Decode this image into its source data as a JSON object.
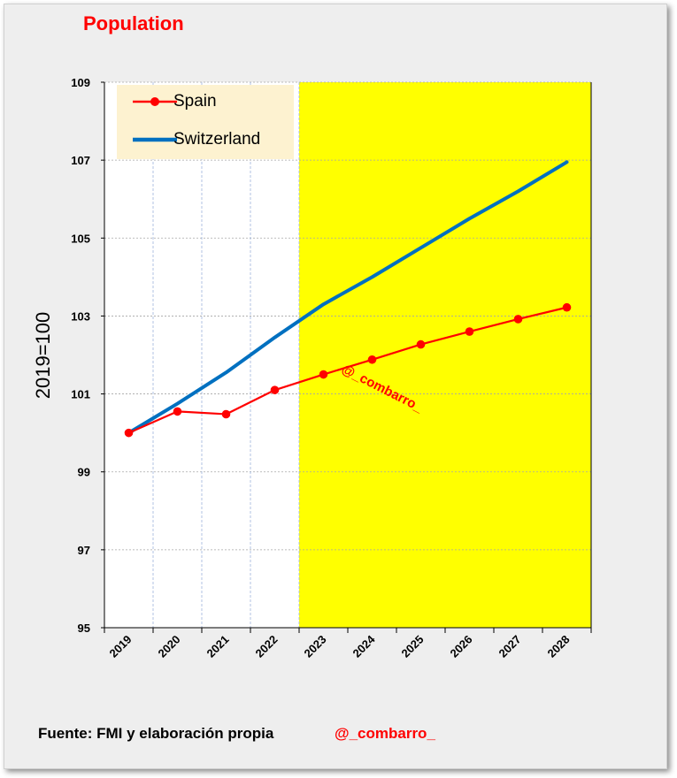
{
  "title": "Population",
  "footer": {
    "source": "Fuente: FMI y elaboración propia",
    "handle": "@_combarro_"
  },
  "watermark": "@_combarro_",
  "chart_data": {
    "type": "line",
    "title": "Population",
    "ylabel": "2019=100",
    "xlabel": "",
    "ylim": [
      95,
      109
    ],
    "yticks": [
      95,
      97,
      99,
      101,
      103,
      105,
      107,
      109
    ],
    "categories": [
      "2019",
      "2020",
      "2021",
      "2022",
      "2023",
      "2024",
      "2025",
      "2026",
      "2027",
      "2028"
    ],
    "forecast_start": "2023",
    "forecast_color": "#ffff00",
    "grid": true,
    "legend_position": "top-left",
    "series": [
      {
        "name": "Spain",
        "color": "#ff0000",
        "markers": true,
        "values": [
          100.0,
          100.55,
          100.48,
          101.1,
          101.5,
          101.88,
          102.27,
          102.6,
          102.92,
          103.22
        ]
      },
      {
        "name": "Switzerland",
        "color": "#0070c0",
        "markers": false,
        "values": [
          100.0,
          100.75,
          101.55,
          102.45,
          103.3,
          104.0,
          104.75,
          105.5,
          106.2,
          106.95
        ]
      }
    ]
  }
}
